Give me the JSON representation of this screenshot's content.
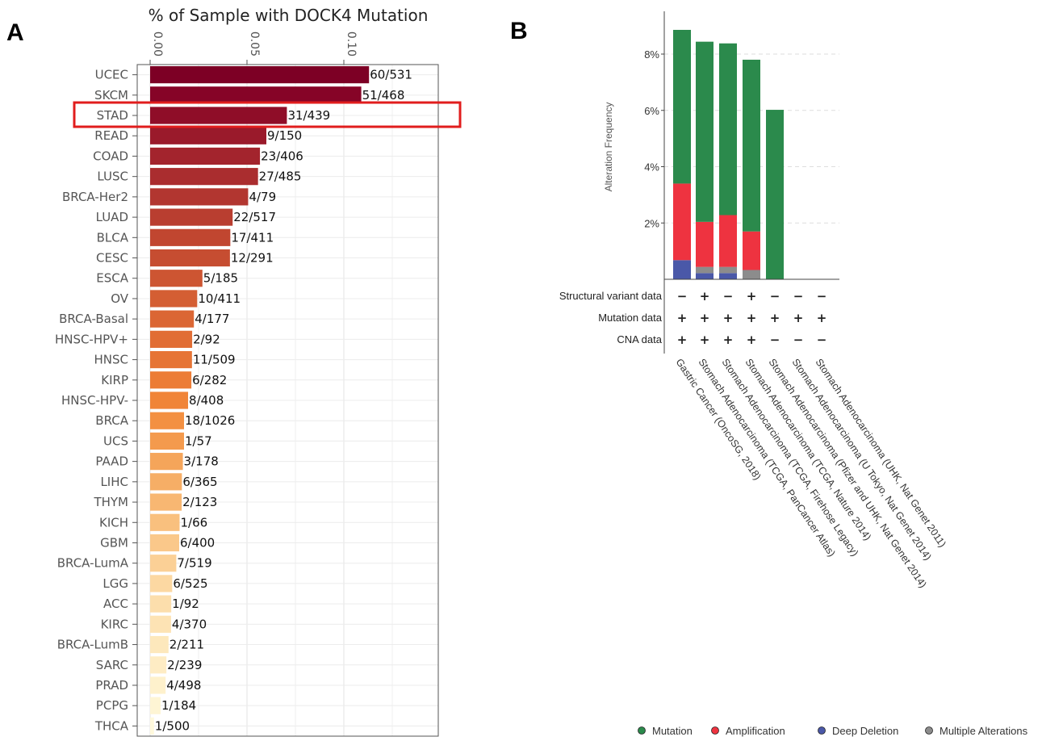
{
  "panels": {
    "a_letter": "A",
    "b_letter": "B"
  },
  "chart_data": [
    {
      "type": "bar",
      "orientation": "horizontal",
      "title": "% of Sample with DOCK4 Mutation",
      "x_ticks": [
        "0.00",
        "0.05",
        "0.10"
      ],
      "xlim": [
        0,
        0.147
      ],
      "highlight": "STAD",
      "categories": [
        "UCEC",
        "SKCM",
        "STAD",
        "READ",
        "COAD",
        "LUSC",
        "BRCA-Her2",
        "LUAD",
        "BLCA",
        "CESC",
        "ESCA",
        "OV",
        "BRCA-Basal",
        "HNSC-HPV+",
        "HNSC",
        "KIRP",
        "HNSC-HPV-",
        "BRCA",
        "UCS",
        "PAAD",
        "LIHC",
        "THYM",
        "KICH",
        "GBM",
        "BRCA-LumA",
        "LGG",
        "ACC",
        "KIRC",
        "BRCA-LumB",
        "SARC",
        "PRAD",
        "PCPG",
        "THCA"
      ],
      "values": [
        0.113,
        0.109,
        0.0706,
        0.06,
        0.0567,
        0.0557,
        0.0506,
        0.0426,
        0.0414,
        0.0412,
        0.027,
        0.0243,
        0.0226,
        0.0217,
        0.0216,
        0.0213,
        0.0196,
        0.0175,
        0.0175,
        0.0169,
        0.0164,
        0.0163,
        0.0152,
        0.015,
        0.0135,
        0.0114,
        0.0109,
        0.0108,
        0.0095,
        0.0084,
        0.008,
        0.0054,
        0.002
      ],
      "labels": [
        "60/531",
        "51/468",
        "31/439",
        "9/150",
        "23/406",
        "27/485",
        "4/79",
        "22/517",
        "17/411",
        "12/291",
        "5/185",
        "10/411",
        "4/177",
        "2/92",
        "11/509",
        "6/282",
        "8/408",
        "18/1026",
        "1/57",
        "3/178",
        "6/365",
        "2/123",
        "1/66",
        "6/400",
        "7/519",
        "6/525",
        "1/92",
        "4/370",
        "2/211",
        "2/239",
        "4/498",
        "1/184",
        "1/500"
      ],
      "colors": [
        "#7d0025",
        "#860427",
        "#8f0d28",
        "#9a1a2b",
        "#a3242d",
        "#aa2d2f",
        "#b23630",
        "#b93e30",
        "#c14630",
        "#c64d31",
        "#cd5532",
        "#d45e33",
        "#db6634",
        "#e16d34",
        "#e67435",
        "#ec7c36",
        "#f08438",
        "#f39042",
        "#f49a4d",
        "#f5a55a",
        "#f6ae66",
        "#f8b772",
        "#f9c07e",
        "#fac88a",
        "#fbd096",
        "#fcd8a2",
        "#fcdeac",
        "#fde3b4",
        "#fde8bc",
        "#feecc4",
        "#fef1cc",
        "#fef5d4",
        "#fff9dc"
      ]
    },
    {
      "type": "bar",
      "stacked": true,
      "ylabel": "Alteration Frequency",
      "y_ticks": [
        "2%",
        "4%",
        "6%",
        "8%"
      ],
      "ylim": [
        0,
        9.5
      ],
      "categories": [
        "Gastric Cancer (OncoSG, 2018)",
        "Stomach Adenocarcinoma (TCGA, PanCancer Atlas)",
        "Stomach Adenocarcinoma (TCGA, Firehose Legacy)",
        "Stomach Adenocarcinoma (TCGA, Nature 2014)",
        "Stomach Adenocarcinoma (Pfizer and UHK, Nat Genet 2014)",
        "Stomach Adenocarcinoma (U Tokyo, Nat Genet 2014)",
        "Stomach Adenocarcinoma (UHK, Nat Genet 2011)"
      ],
      "series": [
        {
          "name": "Deep Deletion",
          "color": "#4a58a8",
          "values": [
            0.68,
            0.22,
            0.22,
            0,
            0,
            0,
            0
          ]
        },
        {
          "name": "Multiple Alterations",
          "color": "#8c8c8c",
          "values": [
            0,
            0.22,
            0.22,
            0.33,
            0,
            0,
            0
          ]
        },
        {
          "name": "Amplification",
          "color": "#ee3340",
          "values": [
            2.72,
            1.6,
            1.84,
            1.37,
            0,
            0,
            0
          ]
        },
        {
          "name": "Mutation",
          "color": "#2b8a4c",
          "values": [
            5.46,
            6.4,
            6.1,
            6.1,
            6.02,
            0,
            0
          ]
        }
      ],
      "legend_order": [
        "Mutation",
        "Amplification",
        "Deep Deletion",
        "Multiple Alterations"
      ],
      "data_rows": [
        {
          "label": "Structural variant data",
          "marks": [
            "−",
            "+",
            "−",
            "+",
            "−",
            "−",
            "−"
          ]
        },
        {
          "label": "Mutation data",
          "marks": [
            "+",
            "+",
            "+",
            "+",
            "+",
            "+",
            "+"
          ]
        },
        {
          "label": "CNA data",
          "marks": [
            "+",
            "+",
            "+",
            "+",
            "−",
            "−",
            "−"
          ]
        }
      ]
    }
  ]
}
